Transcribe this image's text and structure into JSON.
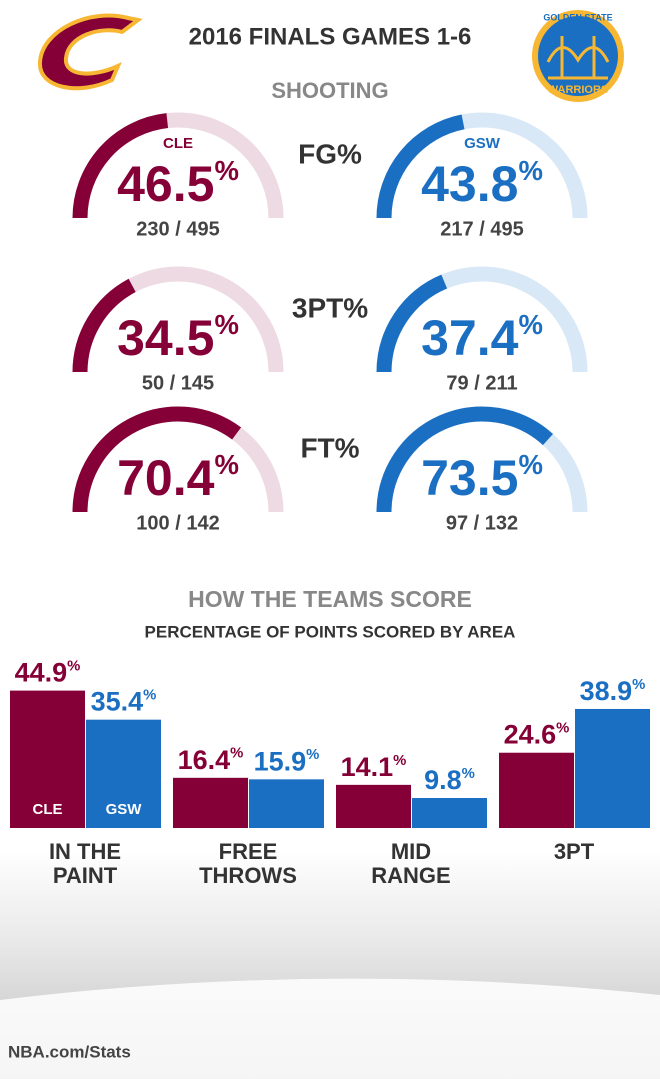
{
  "header": {
    "title": "2016 FINALS GAMES 1-6"
  },
  "logos": {
    "gsw_top": "GOLDEN STATE",
    "gsw_bottom": "WARRIORS"
  },
  "chart_data": [
    {
      "type": "gauge",
      "title": "SHOOTING",
      "ylim": [
        0,
        100
      ],
      "teams": [
        {
          "name": "CLE",
          "color": "#860038",
          "track": "#eddae2"
        },
        {
          "name": "GSW",
          "color": "#1b6fc2",
          "track": "#d9e8f6"
        }
      ],
      "metrics": [
        {
          "label": "FG%",
          "values": [
            46.5,
            43.8
          ],
          "value_labels": [
            "46.5%",
            "43.8%"
          ],
          "shots": [
            "230 / 495",
            "217 / 495"
          ]
        },
        {
          "label": "3PT%",
          "values": [
            34.5,
            37.4
          ],
          "value_labels": [
            "34.5%",
            "37.4%"
          ],
          "shots": [
            "50 / 145",
            "79 / 211"
          ]
        },
        {
          "label": "FT%",
          "values": [
            70.4,
            73.5
          ],
          "value_labels": [
            "70.4%",
            "73.5%"
          ],
          "shots": [
            "100 / 142",
            "97 / 132"
          ]
        }
      ]
    },
    {
      "type": "bar",
      "title": "HOW THE TEAMS SCORE",
      "subtitle": "PERCENTAGE OF POINTS SCORED BY AREA",
      "categories": [
        "IN THE PAINT",
        "FREE THROWS",
        "MID RANGE",
        "3PT"
      ],
      "ylim": [
        0,
        50
      ],
      "series": [
        {
          "name": "CLE",
          "color": "#860038",
          "values": [
            44.9,
            16.4,
            14.1,
            24.6
          ],
          "value_labels": [
            "44.9%",
            "16.4%",
            "14.1%",
            "24.6%"
          ]
        },
        {
          "name": "GSW",
          "color": "#1b6fc2",
          "values": [
            35.4,
            15.9,
            9.8,
            38.9
          ],
          "value_labels": [
            "35.4%",
            "15.9%",
            "9.8%",
            "38.9%"
          ]
        }
      ]
    }
  ],
  "footer": {
    "source": "NBA.com/Stats"
  }
}
